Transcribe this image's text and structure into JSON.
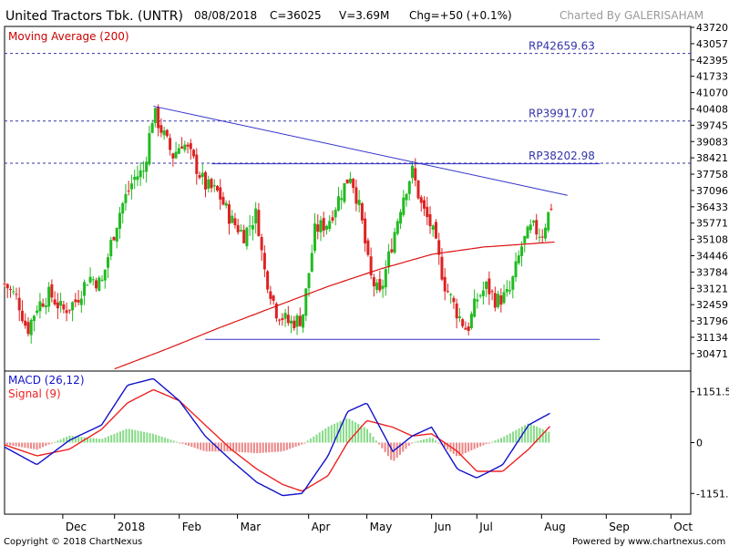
{
  "header": {
    "title": "United Tractors Tbk. (UNTR)",
    "date": "08/08/2018",
    "close": "C=36025",
    "volume": "V=3.69M",
    "change": "Chg=+50 (+0.1%)",
    "credit": "Charted By GALERISAHAM"
  },
  "footer": {
    "copyright": "Copyright © 2018 ChartNexus",
    "powered": "Powered by www.chartnexus.com"
  },
  "colors": {
    "up": "#22bb22",
    "down": "#dd2222",
    "ma": "#dd1111",
    "trend": "#3333cc",
    "macd": "#1111cc",
    "signal": "#ee2222"
  },
  "chart_data": [
    {
      "type": "candlestick",
      "indicator_label": "Moving Average (200)",
      "y_ticks": [
        43720,
        43057,
        42395,
        41733,
        41070,
        40408,
        39745,
        39083,
        38421,
        37758,
        37096,
        36433,
        35771,
        35108,
        34446,
        33784,
        33121,
        32459,
        31796,
        31134,
        30471
      ],
      "ylim": [
        29800,
        43720
      ],
      "x_ticks": [
        {
          "label": "Dec",
          "t": 0.09
        },
        {
          "label": "2018",
          "t": 0.17
        },
        {
          "label": "Feb",
          "t": 0.27
        },
        {
          "label": "Mar",
          "t": 0.36
        },
        {
          "label": "Apr",
          "t": 0.47
        },
        {
          "label": "May",
          "t": 0.56
        },
        {
          "label": "Jun",
          "t": 0.66
        },
        {
          "label": "Jul",
          "t": 0.73
        },
        {
          "label": "Aug",
          "t": 0.83
        },
        {
          "label": "Sep",
          "t": 0.93
        },
        {
          "label": "Oct",
          "t": 1.03
        }
      ],
      "levels": [
        {
          "label": "RP42659.63",
          "value": 42659.63
        },
        {
          "label": "RP39917.07",
          "value": 39917.07
        },
        {
          "label": "RP38202.98",
          "value": 38202.98
        }
      ],
      "resistance_segment": {
        "t_start": 0.32,
        "t_end": 0.92,
        "value": 38180
      },
      "support_segment": {
        "t_start": 0.31,
        "t_end": 0.92,
        "value": 31050
      },
      "downtrend_line": [
        {
          "t": 0.23,
          "value": 40520
        },
        {
          "t": 0.87,
          "value": 36900
        }
      ],
      "price_anchors": [
        {
          "t": 0.0,
          "value": 33300
        },
        {
          "t": 0.02,
          "value": 32700
        },
        {
          "t": 0.035,
          "value": 31400
        },
        {
          "t": 0.05,
          "value": 32400
        },
        {
          "t": 0.07,
          "value": 32900
        },
        {
          "t": 0.09,
          "value": 32200
        },
        {
          "t": 0.11,
          "value": 32600
        },
        {
          "t": 0.13,
          "value": 33600
        },
        {
          "t": 0.15,
          "value": 33300
        },
        {
          "t": 0.165,
          "value": 35000
        },
        {
          "t": 0.18,
          "value": 36400
        },
        {
          "t": 0.2,
          "value": 37600
        },
        {
          "t": 0.215,
          "value": 37900
        },
        {
          "t": 0.23,
          "value": 40300
        },
        {
          "t": 0.245,
          "value": 39400
        },
        {
          "t": 0.26,
          "value": 38500
        },
        {
          "t": 0.275,
          "value": 39100
        },
        {
          "t": 0.29,
          "value": 38400
        },
        {
          "t": 0.31,
          "value": 37300
        },
        {
          "t": 0.33,
          "value": 37000
        },
        {
          "t": 0.35,
          "value": 35900
        },
        {
          "t": 0.37,
          "value": 35300
        },
        {
          "t": 0.39,
          "value": 36200
        },
        {
          "t": 0.4,
          "value": 34000
        },
        {
          "t": 0.42,
          "value": 32200
        },
        {
          "t": 0.44,
          "value": 31700
        },
        {
          "t": 0.46,
          "value": 31900
        },
        {
          "t": 0.48,
          "value": 35500
        },
        {
          "t": 0.5,
          "value": 35800
        },
        {
          "t": 0.52,
          "value": 37000
        },
        {
          "t": 0.535,
          "value": 37800
        },
        {
          "t": 0.55,
          "value": 36200
        },
        {
          "t": 0.565,
          "value": 33600
        },
        {
          "t": 0.58,
          "value": 32800
        },
        {
          "t": 0.6,
          "value": 35100
        },
        {
          "t": 0.615,
          "value": 36800
        },
        {
          "t": 0.63,
          "value": 37900
        },
        {
          "t": 0.645,
          "value": 36400
        },
        {
          "t": 0.66,
          "value": 35600
        },
        {
          "t": 0.68,
          "value": 33300
        },
        {
          "t": 0.7,
          "value": 32100
        },
        {
          "t": 0.715,
          "value": 31400
        },
        {
          "t": 0.73,
          "value": 32700
        },
        {
          "t": 0.745,
          "value": 33200
        },
        {
          "t": 0.76,
          "value": 32600
        },
        {
          "t": 0.78,
          "value": 32900
        },
        {
          "t": 0.8,
          "value": 34900
        },
        {
          "t": 0.815,
          "value": 35600
        },
        {
          "t": 0.83,
          "value": 35300
        },
        {
          "t": 0.845,
          "value": 36500
        }
      ],
      "ma_anchors": [
        {
          "t": 0.17,
          "value": 29850
        },
        {
          "t": 0.25,
          "value": 30650
        },
        {
          "t": 0.33,
          "value": 31500
        },
        {
          "t": 0.41,
          "value": 32300
        },
        {
          "t": 0.5,
          "value": 33200
        },
        {
          "t": 0.58,
          "value": 33900
        },
        {
          "t": 0.66,
          "value": 34500
        },
        {
          "t": 0.74,
          "value": 34800
        },
        {
          "t": 0.85,
          "value": 35000
        }
      ]
    },
    {
      "type": "macd",
      "macd_label": "MACD (26,12)",
      "signal_label": "Signal (9)",
      "y_ticks": [
        {
          "label": "1151.5",
          "value": 1151.5
        },
        {
          "label": "0",
          "value": 0
        },
        {
          "label": "-1151.5",
          "value": -1151.5
        }
      ],
      "ylim": [
        -1600,
        1600
      ],
      "macd_anchors": [
        {
          "t": 0.0,
          "value": -100
        },
        {
          "t": 0.05,
          "value": -500
        },
        {
          "t": 0.1,
          "value": 50
        },
        {
          "t": 0.15,
          "value": 400
        },
        {
          "t": 0.19,
          "value": 1300
        },
        {
          "t": 0.23,
          "value": 1450
        },
        {
          "t": 0.27,
          "value": 950
        },
        {
          "t": 0.31,
          "value": 150
        },
        {
          "t": 0.35,
          "value": -400
        },
        {
          "t": 0.39,
          "value": -900
        },
        {
          "t": 0.43,
          "value": -1200
        },
        {
          "t": 0.46,
          "value": -1150
        },
        {
          "t": 0.5,
          "value": -300
        },
        {
          "t": 0.53,
          "value": 700
        },
        {
          "t": 0.56,
          "value": 900
        },
        {
          "t": 0.6,
          "value": -200
        },
        {
          "t": 0.63,
          "value": 150
        },
        {
          "t": 0.66,
          "value": 350
        },
        {
          "t": 0.7,
          "value": -600
        },
        {
          "t": 0.73,
          "value": -800
        },
        {
          "t": 0.77,
          "value": -500
        },
        {
          "t": 0.81,
          "value": 400
        },
        {
          "t": 0.845,
          "value": 680
        }
      ],
      "signal_anchors": [
        {
          "t": 0.0,
          "value": -50
        },
        {
          "t": 0.05,
          "value": -300
        },
        {
          "t": 0.1,
          "value": -150
        },
        {
          "t": 0.15,
          "value": 300
        },
        {
          "t": 0.19,
          "value": 900
        },
        {
          "t": 0.23,
          "value": 1200
        },
        {
          "t": 0.27,
          "value": 950
        },
        {
          "t": 0.31,
          "value": 400
        },
        {
          "t": 0.35,
          "value": -150
        },
        {
          "t": 0.39,
          "value": -600
        },
        {
          "t": 0.43,
          "value": -950
        },
        {
          "t": 0.46,
          "value": -1100
        },
        {
          "t": 0.5,
          "value": -750
        },
        {
          "t": 0.53,
          "value": 0
        },
        {
          "t": 0.56,
          "value": 500
        },
        {
          "t": 0.6,
          "value": 350
        },
        {
          "t": 0.63,
          "value": 150
        },
        {
          "t": 0.66,
          "value": 200
        },
        {
          "t": 0.7,
          "value": -200
        },
        {
          "t": 0.73,
          "value": -650
        },
        {
          "t": 0.77,
          "value": -650
        },
        {
          "t": 0.81,
          "value": -150
        },
        {
          "t": 0.845,
          "value": 400
        }
      ]
    }
  ]
}
